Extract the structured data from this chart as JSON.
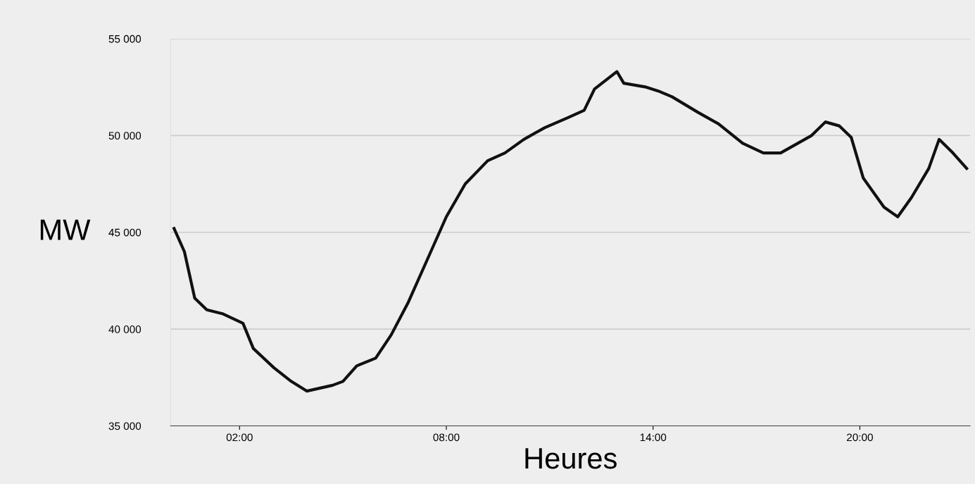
{
  "chart_data": {
    "type": "line",
    "xlabel": "Heures",
    "ylabel": "MW",
    "x": [
      0.1,
      0.4,
      0.7,
      1.05,
      1.5,
      2.1,
      2.4,
      3.0,
      3.5,
      3.95,
      4.7,
      5.0,
      5.4,
      5.95,
      6.4,
      6.9,
      7.45,
      8.0,
      8.55,
      9.2,
      9.7,
      10.25,
      10.85,
      11.5,
      12.0,
      12.3,
      12.95,
      13.15,
      13.8,
      14.15,
      14.55,
      15.3,
      15.9,
      16.6,
      17.2,
      17.7,
      18.6,
      19.0,
      19.4,
      19.75,
      20.1,
      20.7,
      21.1,
      21.5,
      22.0,
      22.3,
      22.7,
      23.1
    ],
    "series": [
      {
        "color": "#111111",
        "values": [
          45200,
          44000,
          41600,
          41000,
          40800,
          40300,
          39000,
          38000,
          37300,
          36800,
          37100,
          37300,
          38100,
          38500,
          39700,
          41400,
          43600,
          45800,
          47500,
          48700,
          49100,
          49800,
          50400,
          50900,
          51300,
          52400,
          53300,
          52700,
          52500,
          52300,
          52000,
          51200,
          50600,
          49600,
          49100,
          49100,
          50000,
          50700,
          50500,
          49900,
          47800,
          46300,
          45800,
          46800,
          48300,
          49800,
          49100,
          48300
        ]
      }
    ],
    "xlim": [
      0,
      23.2
    ],
    "xticks": [
      {
        "value": 2,
        "label": "02:00"
      },
      {
        "value": 8,
        "label": "08:00"
      },
      {
        "value": 14,
        "label": "14:00"
      },
      {
        "value": 20,
        "label": "20:00"
      }
    ],
    "ylim": [
      35000,
      55000
    ],
    "yticks": [
      {
        "value": 35000,
        "label": "35 000"
      },
      {
        "value": 40000,
        "label": "40 000"
      },
      {
        "value": 45000,
        "label": "45 000"
      },
      {
        "value": 50000,
        "label": "50 000"
      },
      {
        "value": 55000,
        "label": "55 000"
      }
    ],
    "grid": "y",
    "marker": "none",
    "line_style": "solid"
  }
}
